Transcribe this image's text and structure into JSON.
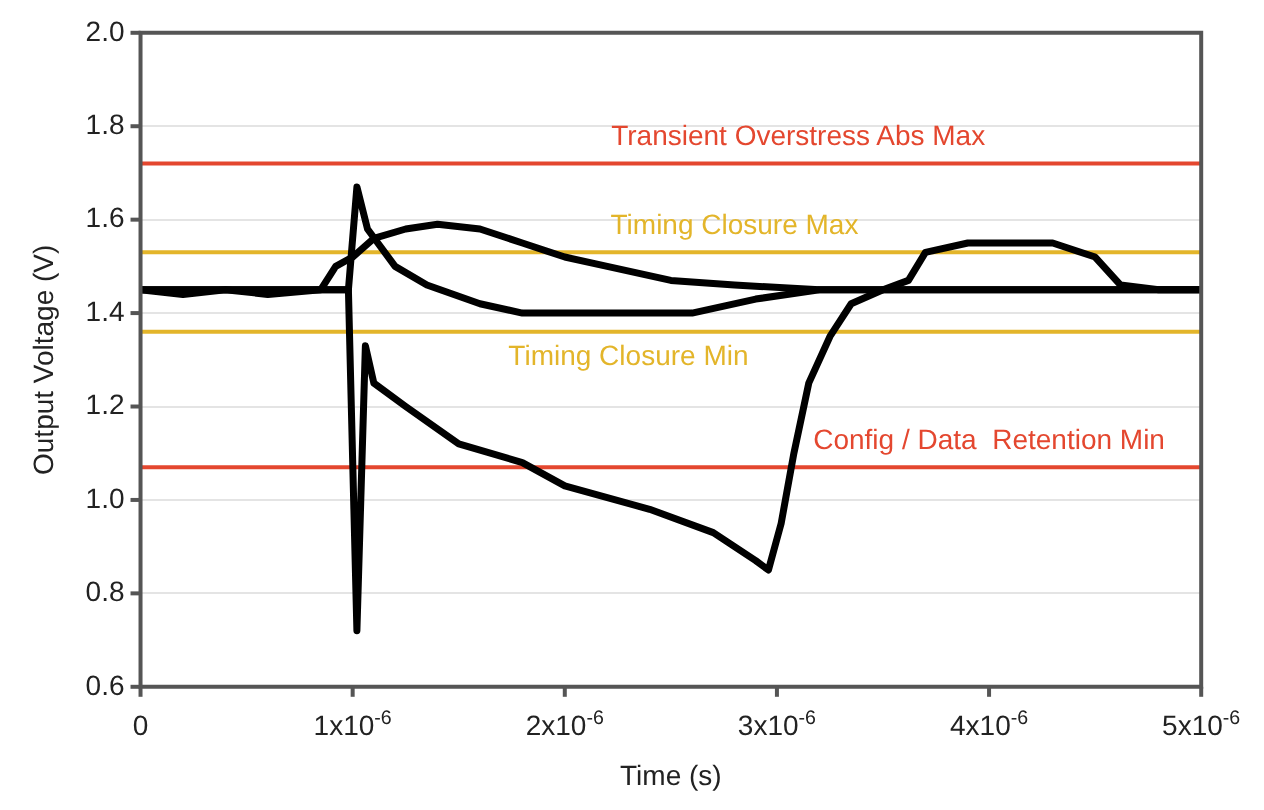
{
  "chart_data": {
    "type": "line",
    "xlabel": "Time (s)",
    "ylabel": "Output Voltage (V)",
    "xlim": [
      0,
      5e-06
    ],
    "ylim": [
      0.6,
      2.0
    ],
    "xticks": [
      0,
      {
        "value": 1e-06,
        "label": "1x10$^{-6}$"
      },
      {
        "value": 2e-06,
        "label": "2x10$^{-6}$"
      },
      {
        "value": 3e-06,
        "label": "3x10$^{-6}$"
      },
      {
        "value": 4e-06,
        "label": "4x10$^{-6}$"
      },
      {
        "value": 5e-06,
        "label": "5x10$^{-6}$"
      }
    ],
    "yticks": [
      0.6,
      0.8,
      {
        "value": 1.0,
        "label": "1.0"
      },
      1.2,
      1.4,
      1.6,
      1.8,
      {
        "value": 2.0,
        "label": "2.0"
      }
    ],
    "grid": "y",
    "legend": false,
    "marker": "none",
    "line_style": "solid",
    "series": [
      {
        "color": "#000000",
        "x": [
          0,
          2e-07,
          4e-07,
          6e-07,
          8.5e-07,
          9.2e-07,
          1e-06,
          1.1e-06,
          1.25e-06,
          1.4e-06,
          1.6e-06,
          1.8e-06,
          2e-06,
          2.2e-06,
          2.5e-06,
          2.8e-06,
          3.2e-06,
          3.6e-06,
          4e-06,
          4.5e-06,
          5e-06
        ],
        "values": [
          1.45,
          1.44,
          1.45,
          1.44,
          1.45,
          1.5,
          1.52,
          1.56,
          1.58,
          1.59,
          1.58,
          1.55,
          1.52,
          1.5,
          1.47,
          1.46,
          1.45,
          1.45,
          1.45,
          1.45,
          1.45
        ]
      },
      {
        "color": "#000000",
        "x": [
          0,
          5e-07,
          9.8e-07,
          1.02e-06,
          1.07e-06,
          1.2e-06,
          1.35e-06,
          1.6e-06,
          1.8e-06,
          2.2e-06,
          2.6e-06,
          2.9e-06,
          3.2e-06,
          3.5e-06,
          3.62e-06,
          3.7e-06,
          3.9e-06,
          4.3e-06,
          4.5e-06,
          4.62e-06,
          4.8e-06,
          5e-06
        ],
        "values": [
          1.45,
          1.45,
          1.45,
          1.67,
          1.58,
          1.5,
          1.46,
          1.42,
          1.4,
          1.4,
          1.4,
          1.43,
          1.45,
          1.45,
          1.47,
          1.53,
          1.55,
          1.55,
          1.52,
          1.46,
          1.45,
          1.45
        ]
      },
      {
        "color": "#000000",
        "x": [
          0,
          5e-07,
          9.8e-07,
          1.02e-06,
          1.06e-06,
          1.1e-06,
          1.25e-06,
          1.5e-06,
          1.8e-06,
          2e-06,
          2.4e-06,
          2.7e-06,
          2.9e-06,
          2.96e-06,
          3.02e-06,
          3.08e-06,
          3.15e-06,
          3.25e-06,
          3.35e-06,
          3.5e-06,
          4e-06,
          5e-06
        ],
        "values": [
          1.45,
          1.45,
          1.45,
          0.72,
          1.33,
          1.25,
          1.2,
          1.12,
          1.08,
          1.03,
          0.98,
          0.93,
          0.87,
          0.85,
          0.95,
          1.1,
          1.25,
          1.35,
          1.42,
          1.45,
          1.45,
          1.45
        ]
      }
    ],
    "ref_lines": [
      {
        "axis": "y",
        "value": 1.72,
        "label": "Transient Overstress Abs Max",
        "color": "#e4472f"
      },
      {
        "axis": "y",
        "value": 1.53,
        "label": "Timing Closure Max",
        "color": "#e3b52a"
      },
      {
        "axis": "y",
        "value": 1.36,
        "label": "Timing Closure Min",
        "color": "#e3b52a"
      },
      {
        "axis": "y",
        "value": 1.07,
        "label": "Config / Data  Retention Min",
        "color": "#e4472f"
      }
    ]
  }
}
